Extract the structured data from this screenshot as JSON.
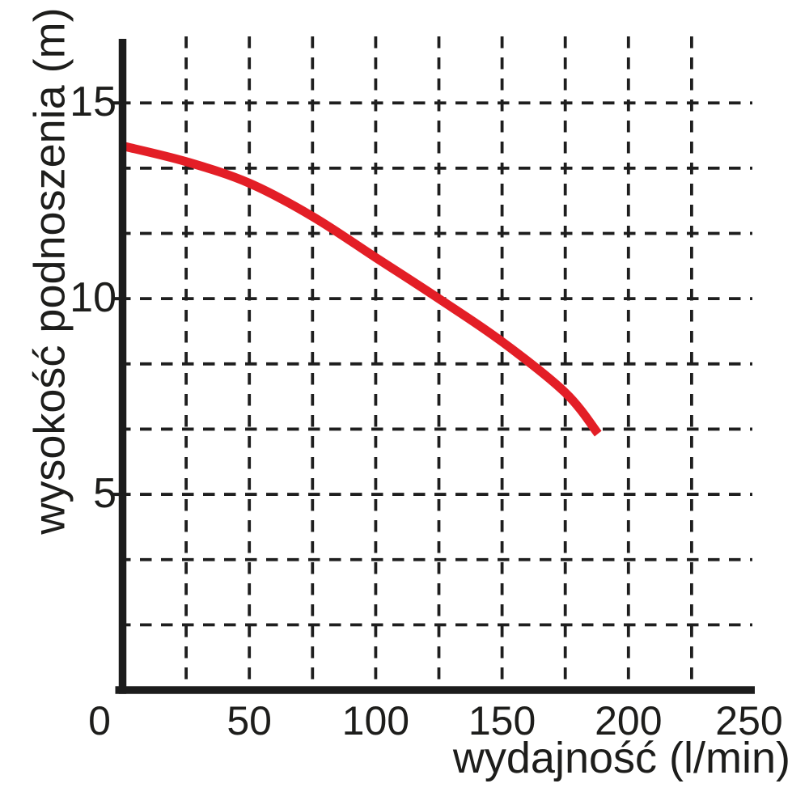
{
  "chart_data": {
    "type": "line",
    "title": "",
    "xlabel": "wydajność (l/min)",
    "ylabel": "wysokość podnoszenia (m)",
    "xlim": [
      0,
      250
    ],
    "ylim": [
      0,
      16.7
    ],
    "x_tick_values": [
      0,
      50,
      100,
      150,
      200,
      250
    ],
    "x_tick_labels": [
      "0",
      "50",
      "100",
      "150",
      "200",
      "250"
    ],
    "y_tick_values": [
      5,
      10,
      15
    ],
    "y_tick_labels": [
      "5",
      "10",
      "15"
    ],
    "grid": {
      "style": "dashed",
      "x_step": 25,
      "y_step": 1.6667,
      "color": "#1e1e1e"
    },
    "axis_color": "#1c1c1c",
    "text_color": "#1d1d1b",
    "series": [
      {
        "color": "#e31e26",
        "points": [
          [
            0,
            13.9
          ],
          [
            25,
            13.5
          ],
          [
            50,
            12.95
          ],
          [
            75,
            12.1
          ],
          [
            100,
            11.05
          ],
          [
            125,
            10.0
          ],
          [
            150,
            8.9
          ],
          [
            175,
            7.6
          ],
          [
            188,
            6.55
          ]
        ]
      }
    ]
  }
}
